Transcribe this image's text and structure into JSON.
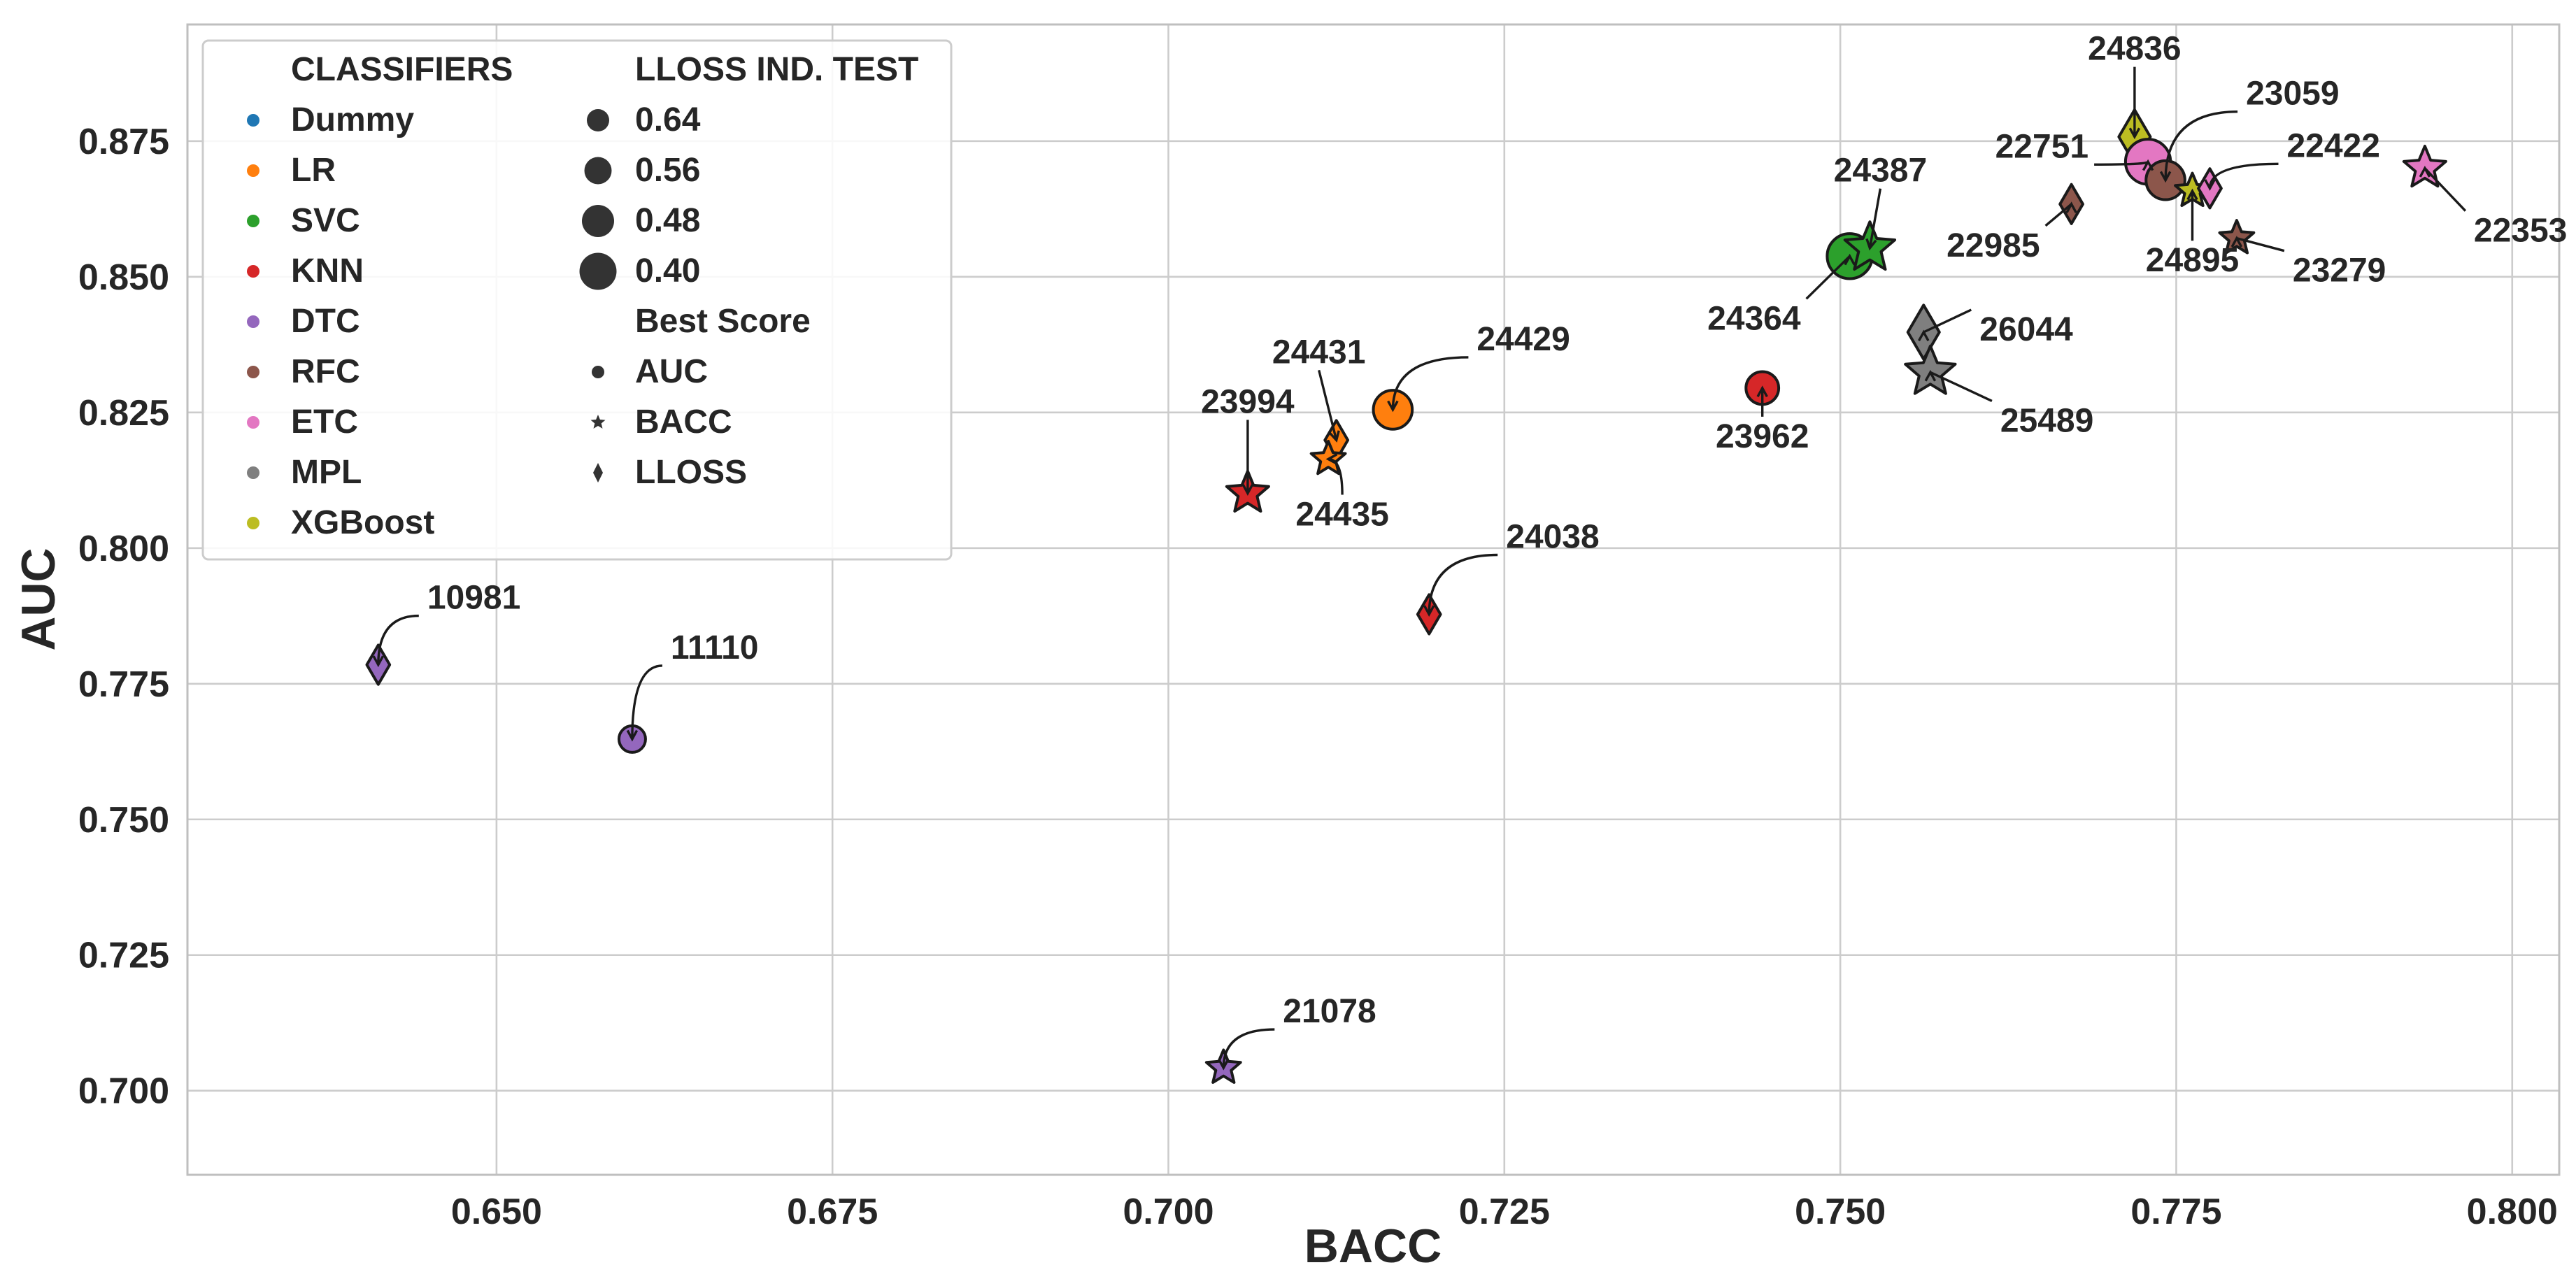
{
  "chart_data": {
    "type": "scatter",
    "title": "",
    "xlabel": "BACC",
    "ylabel": "AUC",
    "xlim": [
      0.627,
      0.8035
    ],
    "ylim": [
      0.6845,
      0.8965
    ],
    "x_ticks": [
      "0.650",
      "0.675",
      "0.700",
      "0.725",
      "0.750",
      "0.775",
      "0.800"
    ],
    "y_ticks": [
      "0.700",
      "0.725",
      "0.750",
      "0.775",
      "0.800",
      "0.825",
      "0.850",
      "0.875"
    ],
    "grid": true,
    "legend": {
      "placement": "top-left",
      "classifiers_title": "CLASSIFIERS",
      "classifiers": [
        {
          "name": "Dummy",
          "color": "#1f77b4"
        },
        {
          "name": "LR",
          "color": "#ff7f0e"
        },
        {
          "name": "SVC",
          "color": "#2ca02c"
        },
        {
          "name": "KNN",
          "color": "#d62728"
        },
        {
          "name": "DTC",
          "color": "#9467bd"
        },
        {
          "name": "RFC",
          "color": "#8c564b"
        },
        {
          "name": "ETC",
          "color": "#e377c2"
        },
        {
          "name": "MPL",
          "color": "#7f7f7f"
        },
        {
          "name": "XGBoost",
          "color": "#bcbd22"
        }
      ],
      "lloss_title": "LLOSS IND. TEST",
      "lloss_sizes": [
        "0.64",
        "0.56",
        "0.48",
        "0.40"
      ],
      "best_title": "Best Score",
      "best_markers": [
        {
          "label": "AUC",
          "marker": "circle"
        },
        {
          "label": "BACC",
          "marker": "star"
        },
        {
          "label": "LLOSS",
          "marker": "diamond"
        }
      ]
    },
    "points": [
      {
        "id": "10981",
        "classifier": "DTC",
        "marker": "diamond",
        "x": 0.6412,
        "y": 0.7785,
        "lloss": 0.56
      },
      {
        "id": "11110",
        "classifier": "DTC",
        "marker": "circle",
        "x": 0.6601,
        "y": 0.7648,
        "lloss": 0.64
      },
      {
        "id": "21078",
        "classifier": "DTC",
        "marker": "star",
        "x": 0.7041,
        "y": 0.7042,
        "lloss": 0.64
      },
      {
        "id": "23994",
        "classifier": "KNN",
        "marker": "star",
        "x": 0.7059,
        "y": 0.8101,
        "lloss": 0.56
      },
      {
        "id": "24431",
        "classifier": "LR",
        "marker": "diamond",
        "x": 0.7125,
        "y": 0.8199,
        "lloss": 0.56
      },
      {
        "id": "24435",
        "classifier": "LR",
        "marker": "star",
        "x": 0.7119,
        "y": 0.8164,
        "lloss": 0.64
      },
      {
        "id": "24429",
        "classifier": "LR",
        "marker": "circle",
        "x": 0.7167,
        "y": 0.8255,
        "lloss": 0.48
      },
      {
        "id": "24038",
        "classifier": "KNN",
        "marker": "diamond",
        "x": 0.7194,
        "y": 0.7878,
        "lloss": 0.56
      },
      {
        "id": "23962",
        "classifier": "KNN",
        "marker": "circle",
        "x": 0.7442,
        "y": 0.8295,
        "lloss": 0.56
      },
      {
        "id": "24364",
        "classifier": "SVC",
        "marker": "circle",
        "x": 0.7507,
        "y": 0.8538,
        "lloss": 0.4
      },
      {
        "id": "24387",
        "classifier": "SVC",
        "marker": "star",
        "x": 0.7522,
        "y": 0.8553,
        "lloss": 0.48
      },
      {
        "id": "26044",
        "classifier": "MPL",
        "marker": "diamond",
        "x": 0.7562,
        "y": 0.8398,
        "lloss": 0.4
      },
      {
        "id": "25489",
        "classifier": "MPL",
        "marker": "star",
        "x": 0.7567,
        "y": 0.8324,
        "lloss": 0.48
      },
      {
        "id": "22985",
        "classifier": "RFC",
        "marker": "diamond",
        "x": 0.7672,
        "y": 0.8634,
        "lloss": 0.56
      },
      {
        "id": "24836",
        "classifier": "XGBoost",
        "marker": "diamond",
        "x": 0.7719,
        "y": 0.8758,
        "lloss": 0.4
      },
      {
        "id": "22751",
        "classifier": "ETC",
        "marker": "circle",
        "x": 0.7729,
        "y": 0.8712,
        "lloss": 0.4
      },
      {
        "id": "23059",
        "classifier": "RFC",
        "marker": "circle",
        "x": 0.7742,
        "y": 0.8678,
        "lloss": 0.48
      },
      {
        "id": "24895",
        "classifier": "XGBoost",
        "marker": "star",
        "x": 0.7762,
        "y": 0.8658,
        "lloss": 0.64
      },
      {
        "id": "22422",
        "classifier": "ETC",
        "marker": "diamond",
        "x": 0.7775,
        "y": 0.8663,
        "lloss": 0.56
      },
      {
        "id": "23279",
        "classifier": "RFC",
        "marker": "star",
        "x": 0.7795,
        "y": 0.8571,
        "lloss": 0.64
      },
      {
        "id": "22353",
        "classifier": "ETC",
        "marker": "star",
        "x": 0.7935,
        "y": 0.87,
        "lloss": 0.56
      }
    ]
  }
}
